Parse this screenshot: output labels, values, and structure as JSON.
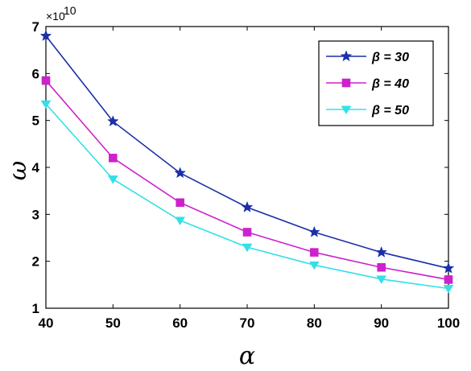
{
  "chart_data": {
    "type": "line",
    "xlabel": "α",
    "ylabel": "ω",
    "y_exponent_label": "×10",
    "y_exponent_power": "10",
    "xlim": [
      40,
      100
    ],
    "ylim": [
      1,
      7
    ],
    "x_ticks": [
      "40",
      "50",
      "60",
      "70",
      "80",
      "90",
      "100"
    ],
    "y_ticks": [
      "1",
      "2",
      "3",
      "4",
      "5",
      "6",
      "7"
    ],
    "grid": false,
    "legend_position": "top-right",
    "x": [
      40,
      50,
      60,
      70,
      80,
      90,
      100
    ],
    "series": [
      {
        "name": "β = 30",
        "color": "#1a2fa8",
        "marker": "star",
        "values": [
          6.8,
          4.98,
          3.88,
          3.15,
          2.62,
          2.19,
          1.85
        ]
      },
      {
        "name": "β = 40",
        "color": "#cc22cc",
        "marker": "square",
        "values": [
          5.85,
          4.2,
          3.25,
          2.62,
          2.19,
          1.87,
          1.61
        ]
      },
      {
        "name": "β = 50",
        "color": "#33e0e8",
        "marker": "triangle-down",
        "values": [
          5.35,
          3.75,
          2.87,
          2.3,
          1.92,
          1.62,
          1.42
        ]
      }
    ]
  }
}
